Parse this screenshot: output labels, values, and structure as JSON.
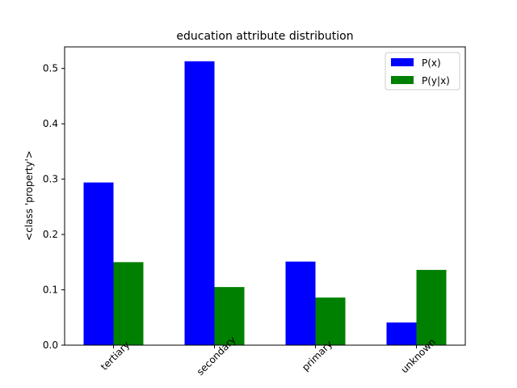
{
  "chart_data": {
    "type": "bar",
    "title": "education attribute distribution",
    "xlabel": "",
    "ylabel": "<class 'property'>",
    "categories": [
      "tertiary",
      "secondary",
      "primary",
      "unknown"
    ],
    "series": [
      {
        "name": "P(x)",
        "color": "#0000ff",
        "values": [
          0.294,
          0.513,
          0.151,
          0.041
        ]
      },
      {
        "name": "P(y|x)",
        "color": "#008000",
        "values": [
          0.15,
          0.105,
          0.086,
          0.136
        ]
      }
    ],
    "ylim": [
      0,
      0.539
    ],
    "yticks": [
      0.0,
      0.1,
      0.2,
      0.3,
      0.4,
      0.5
    ],
    "ytick_labels": [
      "0.0",
      "0.1",
      "0.2",
      "0.3",
      "0.4",
      "0.5"
    ],
    "legend_position": "top-right",
    "grid": false
  }
}
